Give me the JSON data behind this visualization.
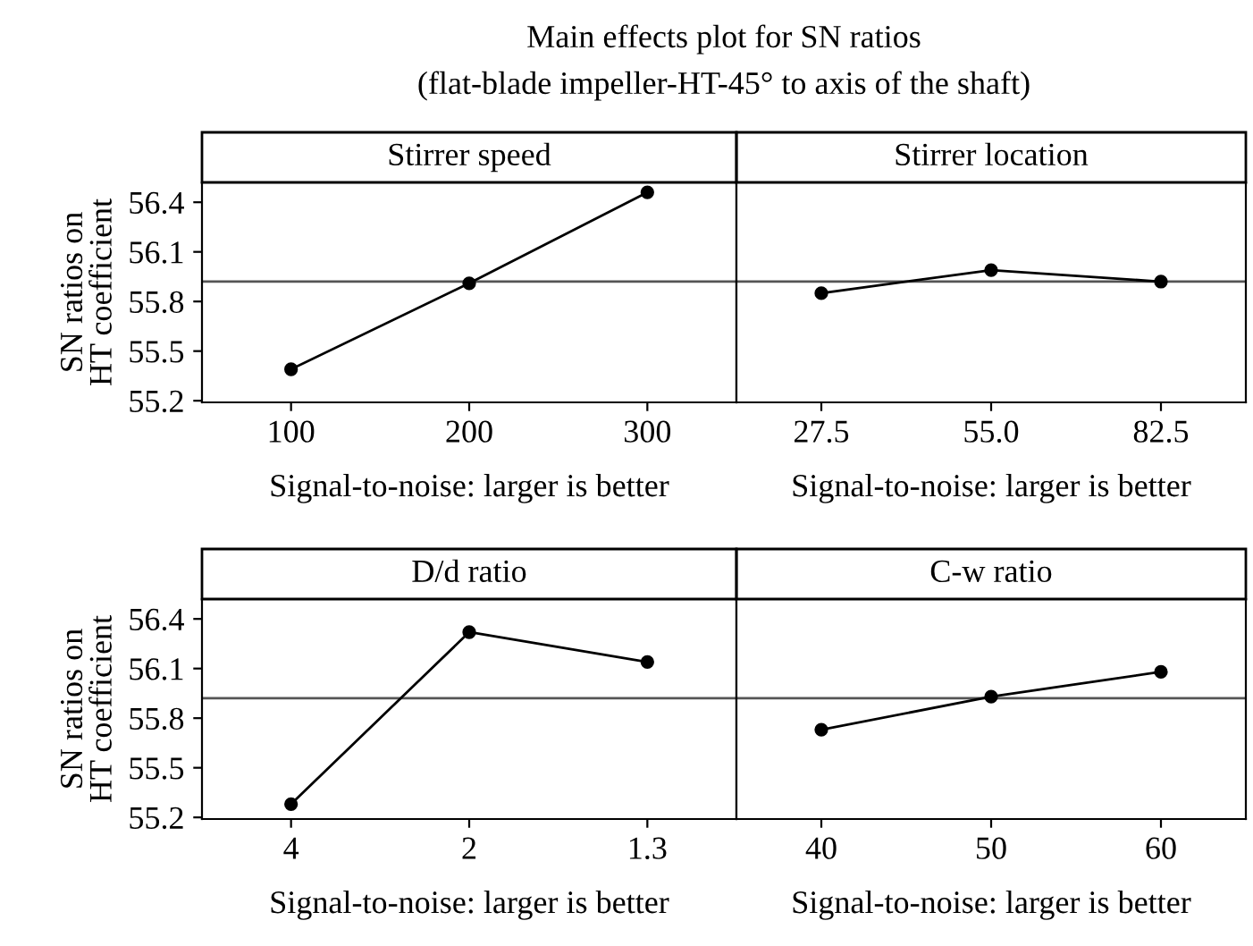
{
  "chart_data": [
    {
      "type": "line",
      "title": "Stirrer speed",
      "annotations": [
        "Main effects plot for SN ratios",
        "(flat-blade impeller-HT-45° to axis of the shaft)"
      ],
      "categories": [
        "100",
        "200",
        "300"
      ],
      "values": [
        55.39,
        55.91,
        56.46
      ],
      "color": "#000000",
      "marker": "circle",
      "line_style": "solid",
      "xlabel": "Signal-to-noise: larger is better",
      "ylabel": "SN ratios on\nHT coefficient",
      "ylim": [
        55.19,
        56.52
      ],
      "yticks": [
        55.2,
        55.5,
        55.8,
        56.1,
        56.4
      ],
      "ref_lines": [
        {
          "axis": "y",
          "value": 55.92,
          "color": "#555555"
        }
      ],
      "grid": false,
      "legend": false
    },
    {
      "type": "line",
      "title": "Stirrer location",
      "categories": [
        "27.5",
        "55.0",
        "82.5"
      ],
      "values": [
        55.85,
        55.99,
        55.92
      ],
      "color": "#000000",
      "marker": "circle",
      "line_style": "solid",
      "xlabel": "Signal-to-noise: larger is better",
      "ylim": [
        55.19,
        56.52
      ],
      "tick_labels": "x",
      "ref_lines": [
        {
          "axis": "y",
          "value": 55.92,
          "color": "#555555"
        }
      ],
      "grid": false,
      "legend": false
    },
    {
      "type": "line",
      "title": "D/d ratio",
      "categories": [
        "4",
        "2",
        "1.3"
      ],
      "values": [
        55.28,
        56.32,
        56.14
      ],
      "color": "#000000",
      "marker": "circle",
      "line_style": "solid",
      "xlabel": "Signal-to-noise: larger is better",
      "ylabel": "SN ratios on\nHT coefficient",
      "ylim": [
        55.19,
        56.52
      ],
      "yticks": [
        55.2,
        55.5,
        55.8,
        56.1,
        56.4
      ],
      "ref_lines": [
        {
          "axis": "y",
          "value": 55.92,
          "color": "#555555"
        }
      ],
      "grid": false,
      "legend": false
    },
    {
      "type": "line",
      "title": "C-w ratio",
      "categories": [
        "40",
        "50",
        "60"
      ],
      "values": [
        55.73,
        55.93,
        56.08
      ],
      "color": "#000000",
      "marker": "circle",
      "line_style": "solid",
      "xlabel": "Signal-to-noise: larger is better",
      "ylim": [
        55.19,
        56.52
      ],
      "tick_labels": "x",
      "ref_lines": [
        {
          "axis": "y",
          "value": 55.92,
          "color": "#555555"
        }
      ],
      "grid": false,
      "legend": false
    }
  ]
}
